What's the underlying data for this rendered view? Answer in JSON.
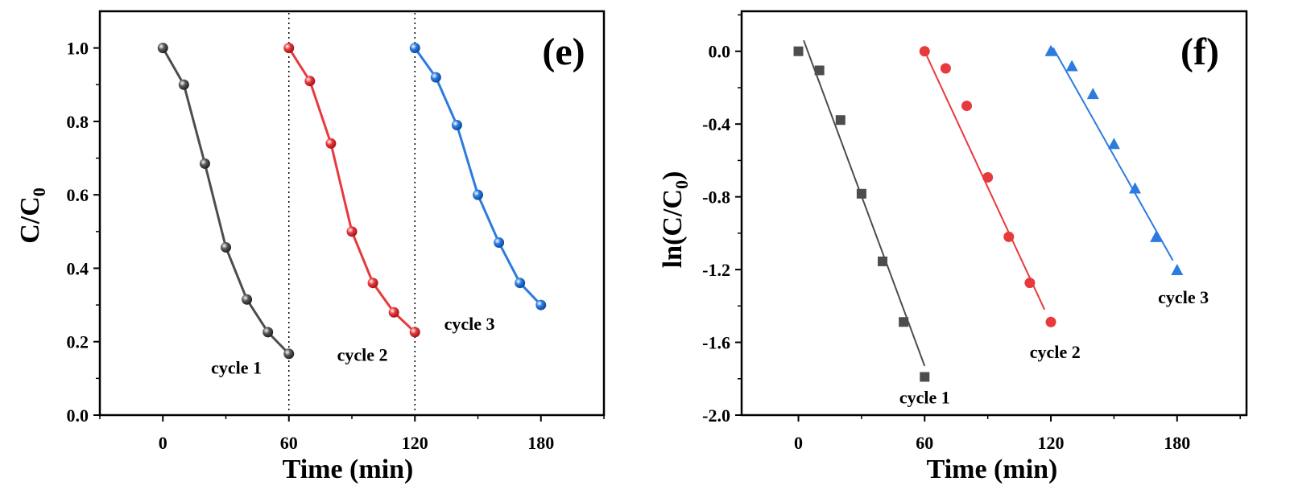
{
  "chart_data": [
    {
      "type": "line",
      "panel_label": "(e)",
      "xlabel": "Time (min)",
      "ylabel_main": "C/C",
      "ylabel_sub": "0",
      "xlim": [
        -30,
        210
      ],
      "ylim": [
        0.0,
        1.1
      ],
      "xticks": [
        0,
        60,
        120,
        180
      ],
      "yticks": [
        0.0,
        0.2,
        0.4,
        0.6,
        0.8,
        1.0
      ],
      "xtick_labels": [
        "0",
        "60",
        "120",
        "180"
      ],
      "ytick_labels": [
        "0.0",
        "0.2",
        "0.4",
        "0.6",
        "0.8",
        "1.0"
      ],
      "vlines": [
        60,
        120
      ],
      "series": [
        {
          "name": "cycle 1",
          "color": "#4d4d4d",
          "marker": "sphere",
          "x": [
            0,
            10,
            20,
            30,
            40,
            50,
            60
          ],
          "y": [
            1.0,
            0.9,
            0.685,
            0.457,
            0.315,
            0.226,
            0.167
          ]
        },
        {
          "name": "cycle 2",
          "color": "#e8393c",
          "marker": "sphere",
          "x": [
            60,
            70,
            80,
            90,
            100,
            110,
            120
          ],
          "y": [
            1.0,
            0.91,
            0.74,
            0.5,
            0.36,
            0.28,
            0.226
          ]
        },
        {
          "name": "cycle 3",
          "color": "#2b7be0",
          "marker": "sphere",
          "x": [
            120,
            130,
            140,
            150,
            160,
            170,
            180
          ],
          "y": [
            1.0,
            0.92,
            0.79,
            0.6,
            0.47,
            0.36,
            0.3
          ]
        }
      ],
      "annotations": [
        {
          "text": "cycle 1",
          "x": 35,
          "y": 0.13
        },
        {
          "text": "cycle 2",
          "x": 95,
          "y": 0.165
        },
        {
          "text": "cycle 3",
          "x": 146,
          "y": 0.25
        }
      ]
    },
    {
      "type": "scatter",
      "panel_label": "(f)",
      "xlabel": "Time (min)",
      "ylabel_main": "ln(C/C",
      "ylabel_sub": "0",
      "ylabel_tail": ")",
      "xlim": [
        -27,
        213
      ],
      "ylim": [
        -2.0,
        0.22
      ],
      "xticks": [
        0,
        60,
        120,
        180
      ],
      "yticks": [
        0.0,
        -0.4,
        -0.8,
        -1.2,
        -1.6,
        -2.0
      ],
      "xtick_labels": [
        "0",
        "60",
        "120",
        "180"
      ],
      "ytick_labels": [
        "0.0",
        "-0.4",
        "-0.8",
        "-1.2",
        "-1.6",
        "-2.0"
      ],
      "series": [
        {
          "name": "cycle 1",
          "color": "#4d4d4d",
          "marker": "square",
          "x": [
            0,
            10,
            20,
            30,
            40,
            50,
            60
          ],
          "y": [
            0.0,
            -0.105,
            -0.378,
            -0.783,
            -1.155,
            -1.488,
            -1.79
          ],
          "fit": {
            "x": [
              2.5,
              60
            ],
            "y": [
              0.06,
              -1.73
            ]
          }
        },
        {
          "name": "cycle 2",
          "color": "#e8393c",
          "marker": "circle",
          "x": [
            60,
            70,
            80,
            90,
            100,
            110,
            120
          ],
          "y": [
            0.0,
            -0.094,
            -0.3,
            -0.693,
            -1.02,
            -1.273,
            -1.488
          ],
          "fit": {
            "x": [
              60,
              117
            ],
            "y": [
              0.0,
              -1.42
            ]
          }
        },
        {
          "name": "cycle 3",
          "color": "#2b7be0",
          "marker": "triangle",
          "x": [
            120,
            130,
            140,
            150,
            160,
            170,
            180
          ],
          "y": [
            0.0,
            -0.083,
            -0.236,
            -0.511,
            -0.755,
            -1.022,
            -1.204
          ],
          "fit": {
            "x": [
              121,
              178
            ],
            "y": [
              0.02,
              -1.15
            ]
          }
        }
      ],
      "annotations": [
        {
          "text": "cycle 1",
          "x": 60,
          "y": -1.9
        },
        {
          "text": "cycle 2",
          "x": 122,
          "y": -1.65
        },
        {
          "text": "cycle 3",
          "x": 183,
          "y": -1.35
        }
      ]
    }
  ]
}
